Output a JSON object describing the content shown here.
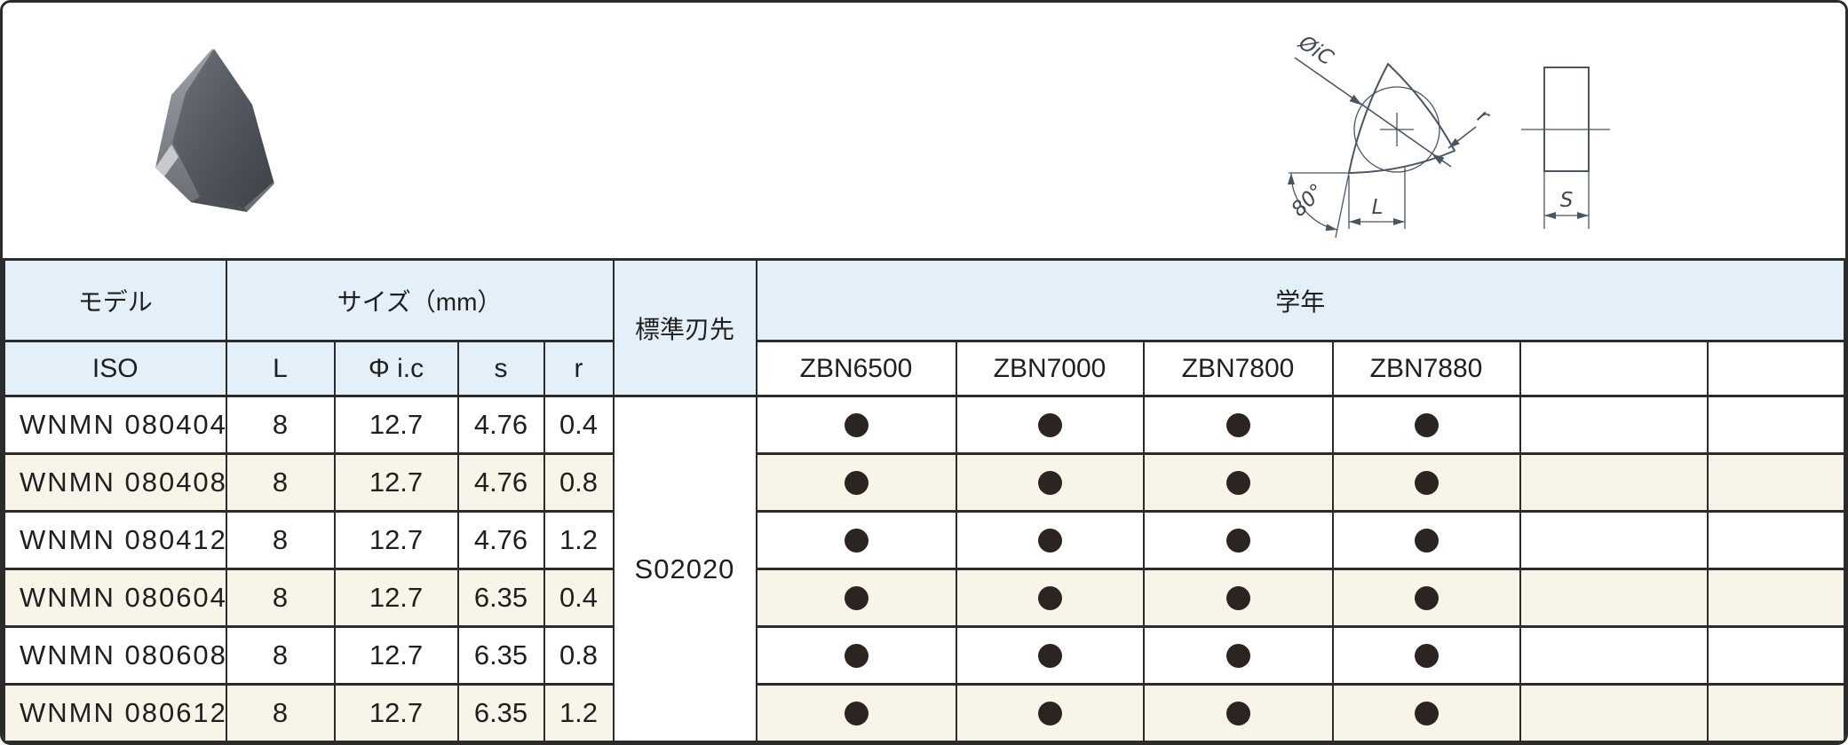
{
  "drawing": {
    "labels": {
      "diameter": "ØiC",
      "radius": "r",
      "angle": "80°",
      "length": "L",
      "thickness": "S"
    }
  },
  "table": {
    "header_row1": {
      "model": "モデル",
      "size": "サイズ（mm）",
      "edge": "標準刃先",
      "grade": "学年"
    },
    "header_row2": {
      "iso": "ISO",
      "l": "L",
      "ic": "Φ i.c",
      "s": "s",
      "r": "r",
      "grades": [
        "ZBN6500",
        "ZBN7000",
        "ZBN7800",
        "ZBN7880",
        "",
        ""
      ]
    },
    "edge_value": "S02020",
    "rows": [
      {
        "iso": "WNMN 080404",
        "l": "8",
        "ic": "12.7",
        "s": "4.76",
        "r": "0.4",
        "marks": [
          true,
          true,
          true,
          true,
          false,
          false
        ]
      },
      {
        "iso": "WNMN 080408",
        "l": "8",
        "ic": "12.7",
        "s": "4.76",
        "r": "0.8",
        "marks": [
          true,
          true,
          true,
          true,
          false,
          false
        ]
      },
      {
        "iso": "WNMN 080412",
        "l": "8",
        "ic": "12.7",
        "s": "4.76",
        "r": "1.2",
        "marks": [
          true,
          true,
          true,
          true,
          false,
          false
        ]
      },
      {
        "iso": "WNMN 080604",
        "l": "8",
        "ic": "12.7",
        "s": "6.35",
        "r": "0.4",
        "marks": [
          true,
          true,
          true,
          true,
          false,
          false
        ]
      },
      {
        "iso": "WNMN 080608",
        "l": "8",
        "ic": "12.7",
        "s": "6.35",
        "r": "0.8",
        "marks": [
          true,
          true,
          true,
          true,
          false,
          false
        ]
      },
      {
        "iso": "WNMN 080612",
        "l": "8",
        "ic": "12.7",
        "s": "6.35",
        "r": "1.2",
        "marks": [
          true,
          true,
          true,
          true,
          false,
          false
        ]
      }
    ]
  },
  "colors": {
    "header_bg": "#e4f0f9",
    "stripe_bg": "#f8f5e8",
    "dot": "#2b2421",
    "table_line": "#2b2b2b",
    "drawing_stroke": "#4a5561"
  }
}
